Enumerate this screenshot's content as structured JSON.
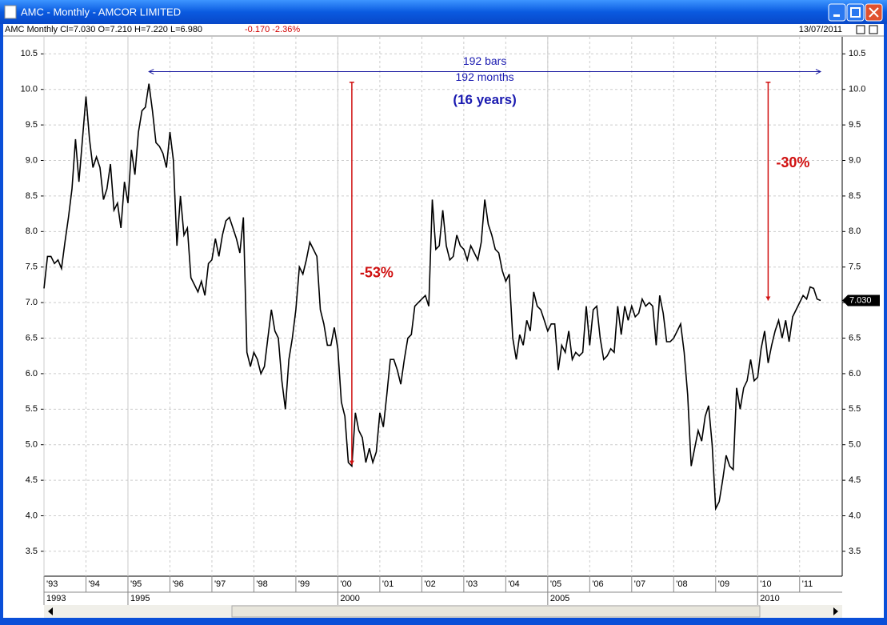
{
  "window": {
    "title": "AMC - Monthly - AMCOR LIMITED",
    "date": "13/07/2011"
  },
  "chart_data": {
    "type": "line",
    "info": "AMC  Monthly  Cl=7.030  O=7.210  H=7.220  L=6.980",
    "change": "-0.170  -2.36%",
    "color": "#000000",
    "categories": [
      "'93",
      null,
      null,
      null,
      null,
      null,
      null,
      null,
      null,
      null,
      null,
      null,
      "'94",
      null,
      null,
      null,
      null,
      null,
      null,
      null,
      null,
      null,
      null,
      null,
      "'95",
      null,
      null,
      null,
      null,
      null,
      null,
      null,
      null,
      null,
      null,
      null,
      "'96",
      null,
      null,
      null,
      null,
      null,
      null,
      null,
      null,
      null,
      null,
      null,
      "'97",
      null,
      null,
      null,
      null,
      null,
      null,
      null,
      null,
      null,
      null,
      null,
      "'98",
      null,
      null,
      null,
      null,
      null,
      null,
      null,
      null,
      null,
      null,
      null,
      "'99",
      null,
      null,
      null,
      null,
      null,
      null,
      null,
      null,
      null,
      null,
      null,
      "'00",
      null,
      null,
      null,
      null,
      null,
      null,
      null,
      null,
      null,
      null,
      null,
      "'01",
      null,
      null,
      null,
      null,
      null,
      null,
      null,
      null,
      null,
      null,
      null,
      "'02",
      null,
      null,
      null,
      null,
      null,
      null,
      null,
      null,
      null,
      null,
      null,
      "'03",
      null,
      null,
      null,
      null,
      null,
      null,
      null,
      null,
      null,
      null,
      null,
      "'04",
      null,
      null,
      null,
      null,
      null,
      null,
      null,
      null,
      null,
      null,
      null,
      "'05",
      null,
      null,
      null,
      null,
      null,
      null,
      null,
      null,
      null,
      null,
      null,
      "'06",
      null,
      null,
      null,
      null,
      null,
      null,
      null,
      null,
      null,
      null,
      null,
      "'07",
      null,
      null,
      null,
      null,
      null,
      null,
      null,
      null,
      null,
      null,
      null,
      "'08",
      null,
      null,
      null,
      null,
      null,
      null,
      null,
      null,
      null,
      null,
      null,
      "'09",
      null,
      null,
      null,
      null,
      null,
      null,
      null,
      null,
      null,
      null,
      null,
      "'10",
      null,
      null,
      null,
      null,
      null,
      null,
      null,
      null,
      null,
      null,
      null,
      "'11",
      null,
      null,
      null,
      null,
      null,
      null
    ],
    "year_categories": [
      "1993",
      null,
      null,
      null,
      null,
      null,
      null,
      null,
      null,
      null,
      null,
      null,
      null,
      null,
      null,
      null,
      null,
      null,
      null,
      null,
      null,
      null,
      null,
      null,
      "1995",
      null,
      null,
      null,
      null,
      null,
      null,
      null,
      null,
      null,
      null,
      null,
      null,
      null,
      null,
      null,
      null,
      null,
      null,
      null,
      null,
      null,
      null,
      null,
      null,
      null,
      null,
      null,
      null,
      null,
      null,
      null,
      null,
      null,
      null,
      null,
      null,
      null,
      null,
      null,
      null,
      null,
      null,
      null,
      null,
      null,
      null,
      null,
      null,
      null,
      null,
      null,
      null,
      null,
      null,
      null,
      null,
      null,
      null,
      null,
      "2000",
      null,
      null,
      null,
      null,
      null,
      null,
      null,
      null,
      null,
      null,
      null,
      null,
      null,
      null,
      null,
      null,
      null,
      null,
      null,
      null,
      null,
      null,
      null,
      null,
      null,
      null,
      null,
      null,
      null,
      null,
      null,
      null,
      null,
      null,
      null,
      null,
      null,
      null,
      null,
      null,
      null,
      null,
      null,
      null,
      null,
      null,
      null,
      null,
      null,
      null,
      null,
      null,
      null,
      null,
      null,
      null,
      null,
      null,
      null,
      "2005",
      null,
      null,
      null,
      null,
      null,
      null,
      null,
      null,
      null,
      null,
      null,
      null,
      null,
      null,
      null,
      null,
      null,
      null,
      null,
      null,
      null,
      null,
      null,
      null,
      null,
      null,
      null,
      null,
      null,
      null,
      null,
      null,
      null,
      null,
      null,
      null,
      null,
      null,
      null,
      null,
      null,
      null,
      null,
      null,
      null,
      null,
      null,
      null,
      null,
      null,
      null,
      null,
      null,
      null,
      null,
      null,
      null,
      null,
      null,
      "2010",
      null,
      null,
      null,
      null,
      null,
      null,
      null,
      null,
      null,
      null,
      null,
      null,
      null,
      null,
      null,
      null,
      null,
      null
    ],
    "values": [
      7.2,
      7.65,
      7.65,
      7.55,
      7.6,
      7.48,
      7.85,
      8.2,
      8.6,
      9.3,
      8.7,
      9.3,
      9.9,
      9.3,
      8.9,
      9.05,
      8.9,
      8.45,
      8.6,
      8.95,
      8.3,
      8.4,
      8.05,
      8.7,
      8.4,
      9.15,
      8.8,
      9.4,
      9.7,
      9.75,
      10.08,
      9.7,
      9.25,
      9.2,
      9.1,
      8.9,
      9.4,
      9.0,
      7.8,
      8.5,
      7.95,
      8.05,
      7.35,
      7.25,
      7.15,
      7.3,
      7.1,
      7.55,
      7.6,
      7.9,
      7.65,
      7.95,
      8.15,
      8.2,
      8.05,
      7.9,
      7.7,
      8.2,
      6.3,
      6.1,
      6.3,
      6.2,
      6.0,
      6.1,
      6.5,
      6.9,
      6.6,
      6.5,
      5.9,
      5.5,
      6.2,
      6.5,
      6.9,
      7.5,
      7.4,
      7.6,
      7.85,
      7.75,
      7.65,
      6.9,
      6.7,
      6.4,
      6.4,
      6.65,
      6.35,
      5.6,
      5.4,
      4.75,
      4.7,
      5.45,
      5.2,
      5.1,
      4.75,
      4.95,
      4.75,
      4.9,
      5.45,
      5.25,
      5.7,
      6.2,
      6.2,
      6.05,
      5.85,
      6.2,
      6.5,
      6.55,
      6.95,
      7.0,
      7.05,
      7.1,
      6.95,
      8.45,
      7.75,
      7.8,
      8.3,
      7.8,
      7.6,
      7.65,
      7.95,
      7.8,
      7.75,
      7.6,
      7.8,
      7.7,
      7.6,
      7.85,
      8.45,
      8.1,
      7.95,
      7.75,
      7.7,
      7.45,
      7.3,
      7.4,
      6.5,
      6.2,
      6.55,
      6.4,
      6.75,
      6.6,
      7.15,
      6.95,
      6.9,
      6.75,
      6.6,
      6.7,
      6.7,
      6.05,
      6.4,
      6.3,
      6.6,
      6.2,
      6.3,
      6.25,
      6.3,
      6.95,
      6.4,
      6.9,
      6.95,
      6.5,
      6.2,
      6.25,
      6.35,
      6.3,
      6.95,
      6.55,
      6.95,
      6.75,
      6.95,
      6.8,
      6.85,
      7.05,
      6.95,
      7.0,
      6.95,
      6.4,
      7.1,
      6.85,
      6.45,
      6.45,
      6.5,
      6.6,
      6.7,
      6.3,
      5.7,
      4.7,
      4.95,
      5.2,
      5.05,
      5.4,
      5.55,
      5.0,
      4.1,
      4.2,
      4.5,
      4.85,
      4.7,
      4.65,
      5.8,
      5.5,
      5.8,
      5.9,
      6.2,
      5.9,
      5.95,
      6.35,
      6.6,
      6.15,
      6.4,
      6.6,
      6.75,
      6.5,
      6.75,
      6.45,
      6.8,
      6.9,
      7.0,
      7.1,
      7.05,
      7.22,
      7.2,
      7.05,
      7.03
    ],
    "last_label": "7.030",
    "ylim": [
      3.15,
      10.74
    ],
    "yticks": [
      3.5,
      {
        "value": 4,
        "label": "4.0"
      },
      4.5,
      {
        "value": 5,
        "label": "5.0"
      },
      5.5,
      {
        "value": 6,
        "label": "6.0"
      },
      6.5,
      {
        "value": 7,
        "label": "7.0"
      },
      7.5,
      {
        "value": 8,
        "label": "8.0"
      },
      8.5,
      {
        "value": 9,
        "label": "9.0"
      },
      9.5,
      {
        "value": 10,
        "label": "10.0"
      },
      10.5
    ],
    "grid": true,
    "span": {
      "start": 30,
      "end": 222,
      "level": 10.25,
      "labels": [
        "192 bars",
        "192 months",
        "(16 years)"
      ]
    },
    "drops": [
      {
        "label": "-53%",
        "at": 88,
        "from": 10.1,
        "to": 4.72
      },
      {
        "label": "-30%",
        "at": 207,
        "from": 10.1,
        "to": 7.03
      }
    ]
  }
}
